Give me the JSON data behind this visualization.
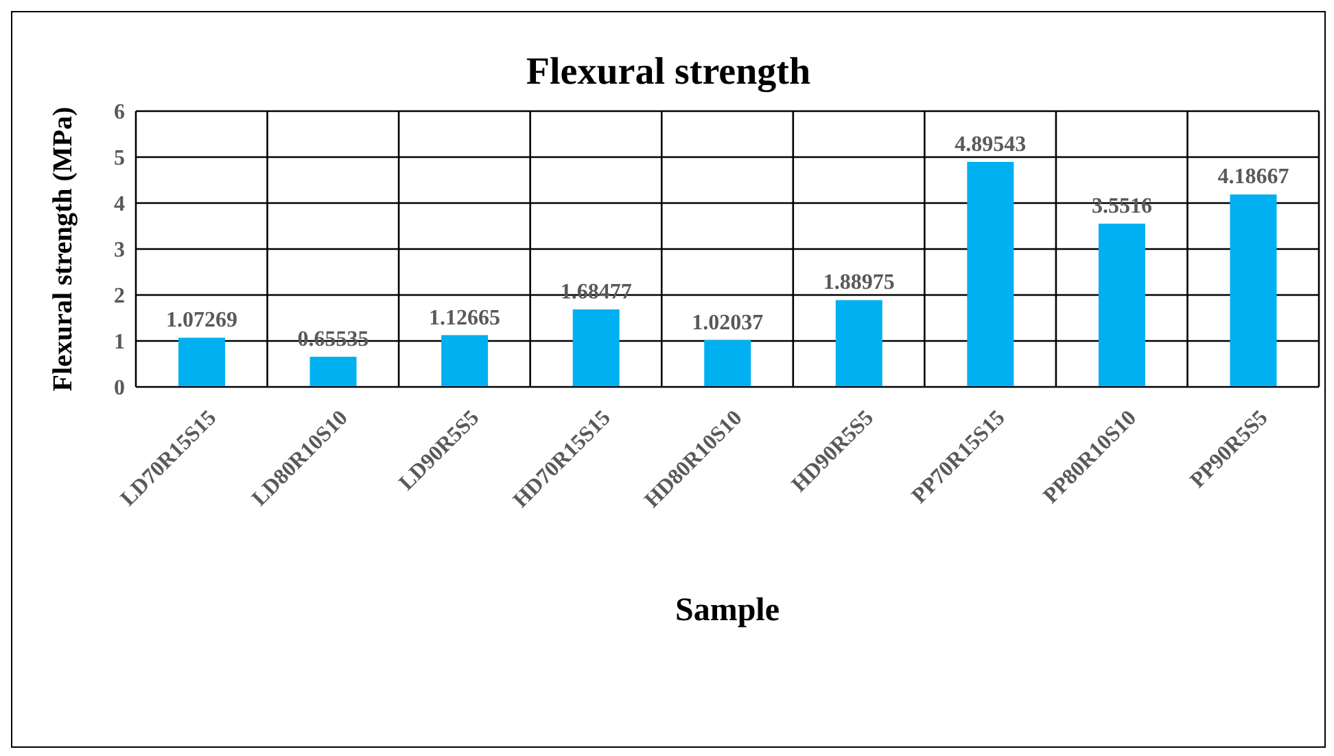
{
  "chart_data": {
    "type": "bar",
    "title": "Flexural strength",
    "xlabel": "Sample",
    "ylabel": "Flexural strength (MPa)",
    "categories": [
      "LD70R15S15",
      "LD80R10S10",
      "LD90R5S5",
      "HD70R15S15",
      "HD80R10S10",
      "HD90R5S5",
      "PP70R15S15",
      "PP80R10S10",
      "PP90R5S5"
    ],
    "values": [
      1.07269,
      0.65535,
      1.12665,
      1.68477,
      1.02037,
      1.88975,
      4.89543,
      3.5516,
      4.18667
    ],
    "color": "#00b0f0",
    "ylim": [
      0,
      6
    ],
    "yticks": [
      0,
      1,
      2,
      3,
      4,
      5,
      6
    ],
    "grid": true,
    "data_labels": true
  }
}
